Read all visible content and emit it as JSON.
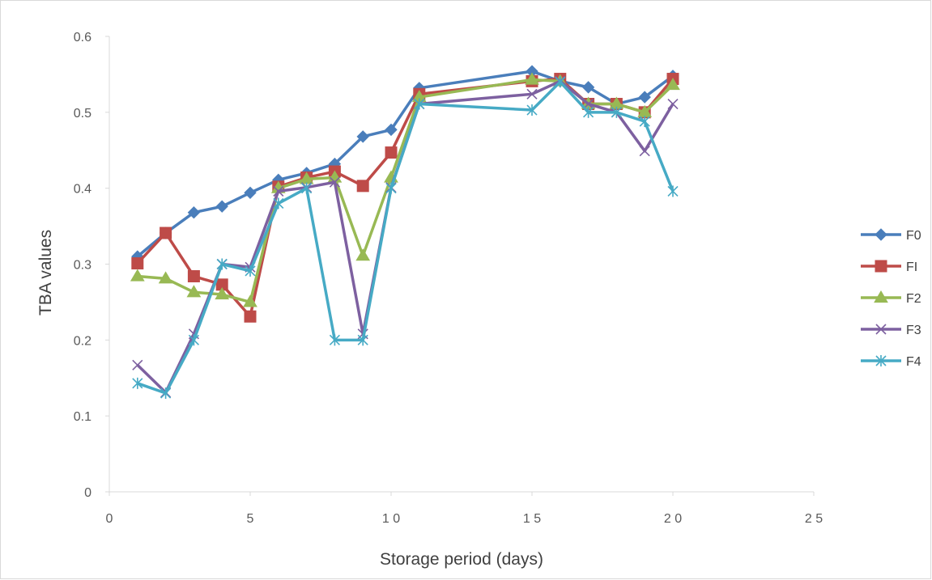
{
  "chart_data": {
    "type": "line",
    "xlabel": "Storage period (days)",
    "ylabel": "TBA values",
    "xlim": [
      0,
      25
    ],
    "ylim": [
      0,
      0.6
    ],
    "x_ticks": [
      0,
      5,
      10,
      15,
      20,
      25
    ],
    "x_tick_labels": [
      "0",
      "5",
      "1 0",
      "1 5",
      "2 0",
      "2 5"
    ],
    "y_ticks": [
      0,
      0.1,
      0.2,
      0.3,
      0.4,
      0.5,
      0.6
    ],
    "y_tick_labels": [
      "0",
      "0.1",
      "0.2",
      "0.3",
      "0.4",
      "0.5",
      "0.6"
    ],
    "grid": false,
    "legend_position": "right",
    "x": [
      1,
      2,
      3,
      4,
      5,
      6,
      7,
      8,
      9,
      10,
      11,
      15,
      16,
      17,
      18,
      19,
      20
    ],
    "series": [
      {
        "name": "F0",
        "color": "#4a7ebb",
        "marker": "diamond",
        "values": [
          0.31,
          0.341,
          0.368,
          0.376,
          0.394,
          0.411,
          0.42,
          0.432,
          0.468,
          0.477,
          0.532,
          0.554,
          0.541,
          0.533,
          0.511,
          0.52,
          0.548
        ]
      },
      {
        "name": "FI",
        "color": "#be4b48",
        "marker": "square",
        "values": [
          0.301,
          0.341,
          0.284,
          0.273,
          0.231,
          0.402,
          0.414,
          0.422,
          0.403,
          0.447,
          0.524,
          0.541,
          0.544,
          0.511,
          0.511,
          0.5,
          0.544
        ]
      },
      {
        "name": "F2",
        "color": "#98b954",
        "marker": "triangle",
        "values": [
          0.284,
          0.281,
          0.263,
          0.26,
          0.25,
          0.4,
          0.412,
          0.414,
          0.311,
          0.414,
          0.52,
          0.543,
          0.541,
          0.511,
          0.511,
          0.5,
          0.536
        ]
      },
      {
        "name": "F3",
        "color": "#7d60a0",
        "marker": "x",
        "values": [
          0.167,
          0.131,
          0.208,
          0.3,
          0.296,
          0.396,
          0.401,
          0.408,
          0.208,
          0.401,
          0.511,
          0.524,
          0.541,
          0.511,
          0.5,
          0.449,
          0.511
        ]
      },
      {
        "name": "F4",
        "color": "#46aac5",
        "marker": "star",
        "values": [
          0.143,
          0.13,
          0.2,
          0.3,
          0.291,
          0.38,
          0.4,
          0.2,
          0.2,
          0.4,
          0.511,
          0.503,
          0.54,
          0.5,
          0.5,
          0.488,
          0.396
        ]
      }
    ]
  }
}
